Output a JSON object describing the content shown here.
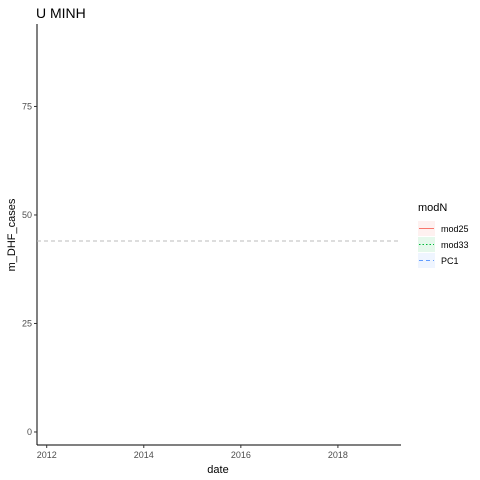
{
  "chart_data": {
    "type": "line",
    "title": "U MINH",
    "xlabel": "date",
    "ylabel": "m_DHF_cases",
    "xlim": [
      2011.8,
      2019.3
    ],
    "ylim": [
      -3,
      94
    ],
    "x_ticks": [
      2012,
      2014,
      2016,
      2018
    ],
    "y_ticks": [
      0,
      25,
      50,
      75
    ],
    "grid": false,
    "legend": {
      "title": "modN",
      "position": "right",
      "entries": [
        {
          "label": "mod25",
          "color": "#F8766D",
          "linestyle": "solid",
          "fill": "#F8766D"
        },
        {
          "label": "mod33",
          "color": "#00BA38",
          "linestyle": "dotted",
          "fill": "#00BA38"
        },
        {
          "label": "PC1",
          "color": "#619CFF",
          "linestyle": "dashed",
          "fill": "#619CFF"
        }
      ]
    },
    "reference_lines": [
      {
        "orientation": "horizontal",
        "y": 44,
        "color": "#bbbbbb",
        "linestyle": "dashed"
      }
    ],
    "series": []
  }
}
